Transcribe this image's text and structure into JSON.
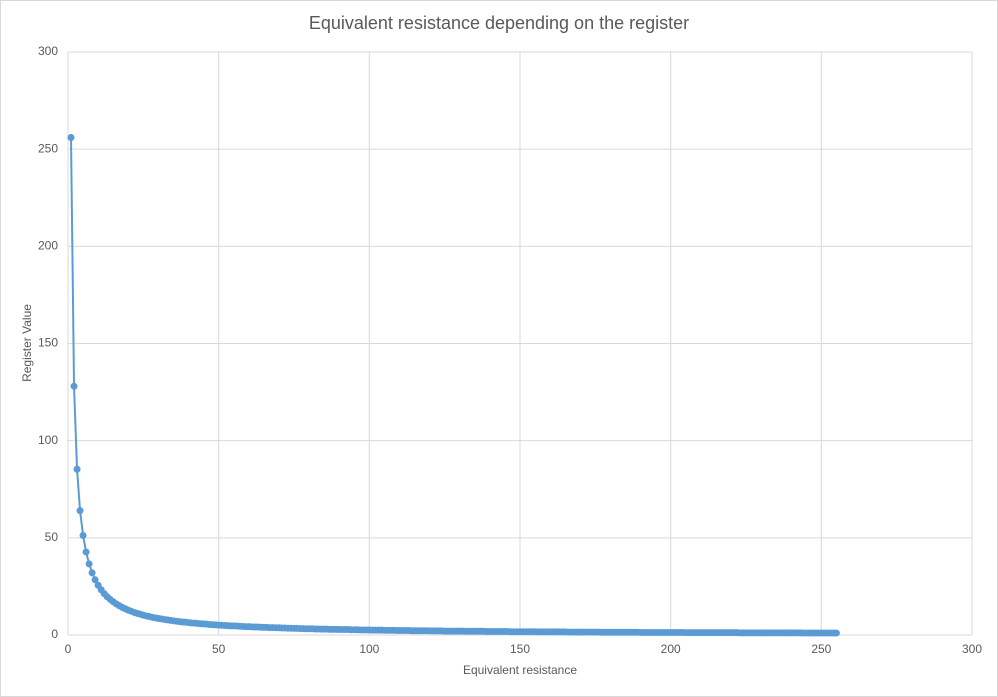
{
  "chart_data": {
    "type": "scatter",
    "title": "Equivalent resistance depending on the register",
    "x_label": "Equivalent resistance",
    "y_label": "Register Value",
    "x": [
      1,
      2,
      3,
      4,
      5,
      6,
      7,
      8,
      9,
      10,
      11,
      12,
      13,
      14,
      15,
      16,
      17,
      18,
      19,
      20,
      21,
      22,
      23,
      24,
      25,
      26,
      27,
      28,
      29,
      30,
      31,
      32,
      33,
      34,
      35,
      36,
      37,
      38,
      39,
      40,
      41,
      42,
      43,
      44,
      45,
      46,
      47,
      48,
      49,
      50,
      51,
      52,
      53,
      54,
      55,
      56,
      57,
      58,
      59,
      60,
      61,
      62,
      63,
      64,
      65,
      66,
      67,
      68,
      69,
      70,
      71,
      72,
      73,
      74,
      75,
      76,
      77,
      78,
      79,
      80,
      81,
      82,
      83,
      84,
      85,
      86,
      87,
      88,
      89,
      90,
      91,
      92,
      93,
      94,
      95,
      96,
      97,
      98,
      99,
      100,
      101,
      102,
      103,
      104,
      105,
      106,
      107,
      108,
      109,
      110,
      111,
      112,
      113,
      114,
      115,
      116,
      117,
      118,
      119,
      120,
      121,
      122,
      123,
      124,
      125,
      126,
      127,
      128,
      129,
      130,
      131,
      132,
      133,
      134,
      135,
      136,
      137,
      138,
      139,
      140,
      141,
      142,
      143,
      144,
      145,
      146,
      147,
      148,
      149,
      150,
      151,
      152,
      153,
      154,
      155,
      156,
      157,
      158,
      159,
      160,
      161,
      162,
      163,
      164,
      165,
      166,
      167,
      168,
      169,
      170,
      171,
      172,
      173,
      174,
      175,
      176,
      177,
      178,
      179,
      180,
      181,
      182,
      183,
      184,
      185,
      186,
      187,
      188,
      189,
      190,
      191,
      192,
      193,
      194,
      195,
      196,
      197,
      198,
      199,
      200,
      201,
      202,
      203,
      204,
      205,
      206,
      207,
      208,
      209,
      210,
      211,
      212,
      213,
      214,
      215,
      216,
      217,
      218,
      219,
      220,
      221,
      222,
      223,
      224,
      225,
      226,
      227,
      228,
      229,
      230,
      231,
      232,
      233,
      234,
      235,
      236,
      237,
      238,
      239,
      240,
      241,
      242,
      243,
      244,
      245,
      246,
      247,
      248,
      249,
      250,
      251,
      252,
      253,
      254,
      255
    ],
    "series": [
      {
        "color": "#5b9bd5",
        "values": [
          256,
          128,
          85.3,
          64,
          51.2,
          42.7,
          36.6,
          32,
          28.4,
          25.6,
          23.3,
          21.3,
          19.7,
          18.3,
          17.1,
          16,
          15.1,
          14.2,
          13.5,
          12.8,
          12.2,
          11.6,
          11.1,
          10.7,
          10.2,
          9.8,
          9.5,
          9.1,
          8.8,
          8.5,
          8.3,
          8,
          7.8,
          7.5,
          7.3,
          7.1,
          6.9,
          6.7,
          6.6,
          6.4,
          6.2,
          6.1,
          6,
          5.8,
          5.7,
          5.6,
          5.4,
          5.3,
          5.2,
          5.1,
          5,
          4.9,
          4.8,
          4.7,
          4.7,
          4.6,
          4.5,
          4.4,
          4.3,
          4.3,
          4.2,
          4.1,
          4.1,
          4,
          3.9,
          3.9,
          3.8,
          3.8,
          3.7,
          3.7,
          3.6,
          3.6,
          3.5,
          3.5,
          3.4,
          3.4,
          3.3,
          3.3,
          3.2,
          3.2,
          3.2,
          3.1,
          3.1,
          3,
          3,
          3,
          2.9,
          2.9,
          2.9,
          2.8,
          2.8,
          2.8,
          2.8,
          2.7,
          2.7,
          2.7,
          2.6,
          2.6,
          2.6,
          2.6,
          2.5,
          2.5,
          2.5,
          2.5,
          2.4,
          2.4,
          2.4,
          2.4,
          2.3,
          2.3,
          2.3,
          2.3,
          2.3,
          2.2,
          2.2,
          2.2,
          2.2,
          2.2,
          2.2,
          2.1,
          2.1,
          2.1,
          2.1,
          2.1,
          2,
          2,
          2,
          2,
          2,
          2,
          2,
          1.9,
          1.9,
          1.9,
          1.9,
          1.9,
          1.9,
          1.9,
          1.8,
          1.8,
          1.8,
          1.8,
          1.8,
          1.8,
          1.8,
          1.8,
          1.7,
          1.7,
          1.7,
          1.7,
          1.7,
          1.7,
          1.7,
          1.7,
          1.7,
          1.6,
          1.6,
          1.6,
          1.6,
          1.6,
          1.6,
          1.6,
          1.6,
          1.6,
          1.6,
          1.5,
          1.5,
          1.5,
          1.5,
          1.5,
          1.5,
          1.5,
          1.5,
          1.5,
          1.5,
          1.5,
          1.4,
          1.4,
          1.4,
          1.4,
          1.4,
          1.4,
          1.4,
          1.4,
          1.4,
          1.4,
          1.4,
          1.4,
          1.4,
          1.3,
          1.3,
          1.3,
          1.3,
          1.3,
          1.3,
          1.3,
          1.3,
          1.3,
          1.3,
          1.3,
          1.3,
          1.3,
          1.3,
          1.3,
          1.2,
          1.2,
          1.2,
          1.2,
          1.2,
          1.2,
          1.2,
          1.2,
          1.2,
          1.2,
          1.2,
          1.2,
          1.2,
          1.2,
          1.2,
          1.2,
          1.2,
          1.2,
          1.1,
          1.1,
          1.1,
          1.1,
          1.1,
          1.1,
          1.1,
          1.1,
          1.1,
          1.1,
          1.1,
          1.1,
          1.1,
          1.1,
          1.1,
          1.1,
          1.1,
          1.1,
          1.1,
          1.1,
          1.1,
          1,
          1,
          1,
          1,
          1,
          1,
          1,
          1,
          1,
          1,
          1,
          1
        ]
      }
    ],
    "xlim": [
      0,
      300
    ],
    "ylim": [
      0,
      300
    ],
    "xticks": [
      0,
      50,
      100,
      150,
      200,
      250,
      300
    ],
    "yticks": [
      0,
      50,
      100,
      150,
      200,
      250,
      300
    ],
    "grid": true
  }
}
